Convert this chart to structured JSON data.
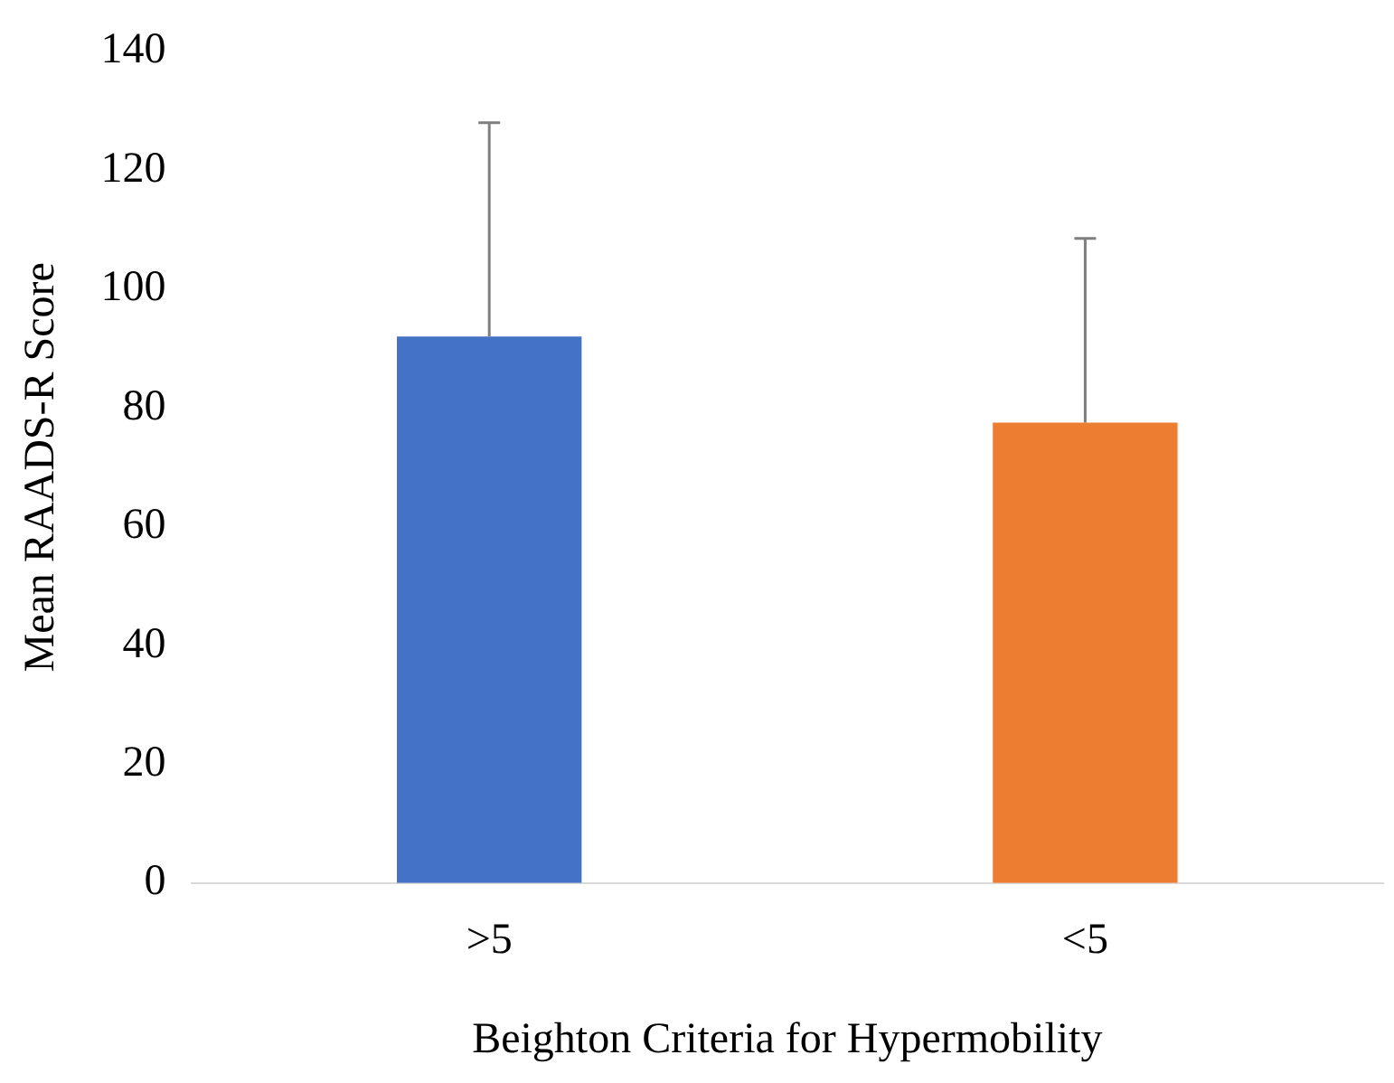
{
  "chart_data": {
    "type": "bar",
    "xlabel": "Beighton Criteria for Hypermobility",
    "ylabel": "Mean RAADS-R Score",
    "categories": [
      ">5",
      "<5"
    ],
    "values": [
      92,
      77.5
    ],
    "colors": [
      "#4472c4",
      "#ed7d31"
    ],
    "errors": [
      [
        92,
        128
      ],
      [
        77.5,
        108.5
      ]
    ],
    "ylim": [
      0,
      140
    ],
    "yticks": [
      0,
      20,
      40,
      60,
      80,
      100,
      120,
      140
    ],
    "grid": false,
    "legend": false
  }
}
